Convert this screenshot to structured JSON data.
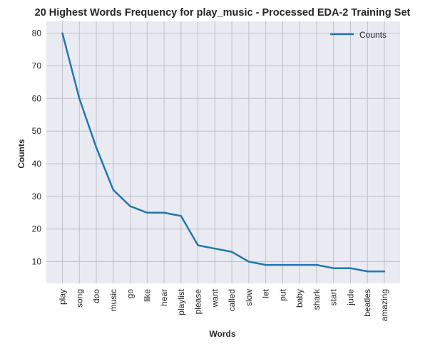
{
  "chart_data": {
    "type": "line",
    "title": "20 Highest Words Frequency for play_music - Processed EDA-2 Training Set",
    "xlabel": "Words",
    "ylabel": "Counts",
    "categories": [
      "play",
      "song",
      "doo",
      "music",
      "go",
      "like",
      "hear",
      "playlist",
      "please",
      "want",
      "called",
      "slow",
      "let",
      "put",
      "baby",
      "shark",
      "start",
      "jude",
      "beatles",
      "amazing"
    ],
    "series": [
      {
        "name": "Counts",
        "values": [
          80,
          60,
          45,
          32,
          27,
          25,
          25,
          24,
          15,
          14,
          13,
          10,
          9,
          9,
          9,
          9,
          8,
          8,
          7,
          7
        ],
        "color": "#1f77b4"
      }
    ],
    "yticks": [
      10,
      20,
      30,
      40,
      50,
      60,
      70,
      80
    ],
    "ylim": [
      3.35,
      83.65
    ],
    "grid": true,
    "legend": "top-right",
    "background": "#eaeaf2",
    "grid_color": "#c0c0c8"
  }
}
